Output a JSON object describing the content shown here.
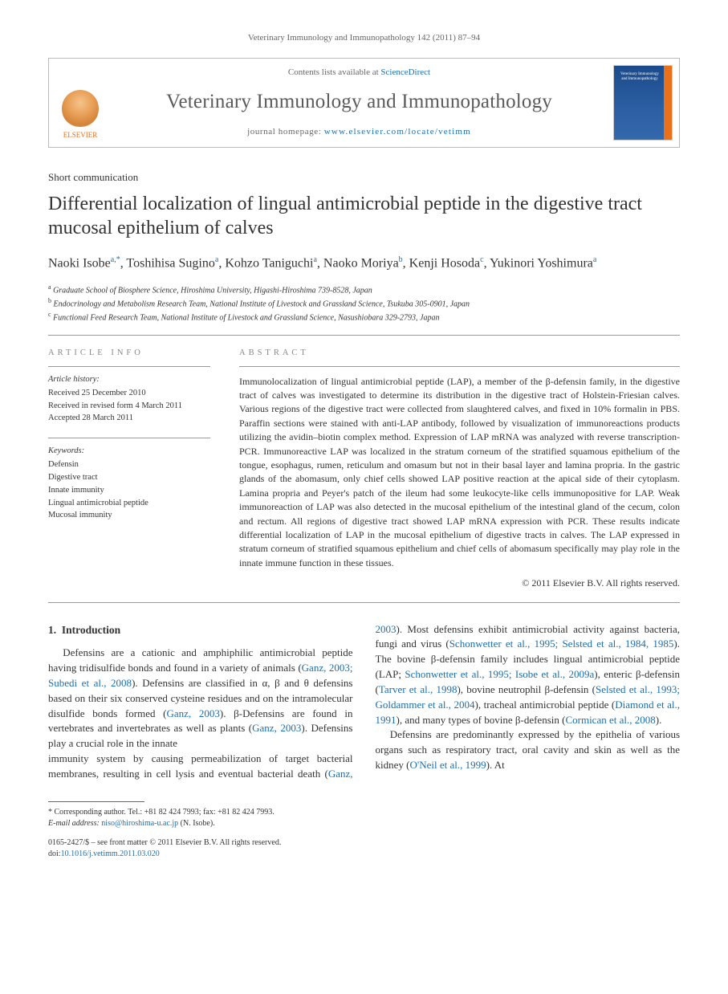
{
  "running_header": "Veterinary Immunology and Immunopathology 142 (2011) 87–94",
  "masthead": {
    "contents_prefix": "Contents lists available at ",
    "contents_link": "ScienceDirect",
    "journal_title": "Veterinary Immunology and Immunopathology",
    "homepage_prefix": "journal homepage: ",
    "homepage_url": "www.elsevier.com/locate/vetimm",
    "publisher_name": "ELSEVIER",
    "cover_text": "Veterinary Immunology and Immunopathology"
  },
  "article": {
    "type": "Short communication",
    "title": "Differential localization of lingual antimicrobial peptide in the digestive tract mucosal epithelium of calves",
    "authors_html": "Naoki Isobe<sup>a,*</sup>, Toshihisa Sugino<sup>a</sup>, Kohzo Taniguchi<sup>a</sup>, Naoko Moriya<sup>b</sup>, Kenji Hosoda<sup>c</sup>, Yukinori Yoshimura<sup>a</sup>",
    "affiliations": [
      {
        "sup": "a",
        "text": "Graduate School of Biosphere Science, Hiroshima University, Higashi-Hiroshima 739-8528, Japan"
      },
      {
        "sup": "b",
        "text": "Endocrinology and Metabolism Research Team, National Institute of Livestock and Grassland Science, Tsukuba 305-0901, Japan"
      },
      {
        "sup": "c",
        "text": "Functional Feed Research Team, National Institute of Livestock and Grassland Science, Nasushiobara 329-2793, Japan"
      }
    ]
  },
  "article_info": {
    "label": "ARTICLE INFO",
    "history_hdg": "Article history:",
    "history": [
      "Received 25 December 2010",
      "Received in revised form 4 March 2011",
      "Accepted 28 March 2011"
    ],
    "keywords_hdg": "Keywords:",
    "keywords": [
      "Defensin",
      "Digestive tract",
      "Innate immunity",
      "Lingual antimicrobial peptide",
      "Mucosal immunity"
    ]
  },
  "abstract": {
    "label": "ABSTRACT",
    "text": "Immunolocalization of lingual antimicrobial peptide (LAP), a member of the β-defensin family, in the digestive tract of calves was investigated to determine its distribution in the digestive tract of Holstein-Friesian calves. Various regions of the digestive tract were collected from slaughtered calves, and fixed in 10% formalin in PBS. Paraffin sections were stained with anti-LAP antibody, followed by visualization of immunoreactions products utilizing the avidin–biotin complex method. Expression of LAP mRNA was analyzed with reverse transcription-PCR. Immunoreactive LAP was localized in the stratum corneum of the stratified squamous epithelium of the tongue, esophagus, rumen, reticulum and omasum but not in their basal layer and lamina propria. In the gastric glands of the abomasum, only chief cells showed LAP positive reaction at the apical side of their cytoplasm. Lamina propria and Peyer's patch of the ileum had some leukocyte-like cells immunopositive for LAP. Weak immunoreaction of LAP was also detected in the mucosal epithelium of the intestinal gland of the cecum, colon and rectum. All regions of digestive tract showed LAP mRNA expression with PCR. These results indicate differential localization of LAP in the mucosal epithelium of digestive tracts in calves. The LAP expressed in stratum corneum of stratified squamous epithelium and chief cells of abomasum specifically may play role in the innate immune function in these tissues.",
    "copyright": "© 2011 Elsevier B.V. All rights reserved."
  },
  "body": {
    "section_number": "1.",
    "section_title": "Introduction",
    "para1_html": "Defensins are a cationic and amphiphilic antimicrobial peptide having tridisulfide bonds and found in a variety of animals (<a href='#'>Ganz, 2003; Subedi et al., 2008</a>). Defensins are classified in α, β and θ defensins based on their six conserved cysteine residues and on the intramolecular disulfide bonds formed (<a href='#'>Ganz, 2003</a>). β-Defensins are found in vertebrates and invertebrates as well as plants (<a href='#'>Ganz, 2003</a>). Defensins play a crucial role in the innate",
    "para1b_html": "immunity system by causing permeabilization of target bacterial membranes, resulting in cell lysis and eventual bacterial death (<a href='#'>Ganz, 2003</a>). Most defensins exhibit antimicrobial activity against bacteria, fungi and virus (<a href='#'>Schonwetter et al., 1995; Selsted et al., 1984, 1985</a>). The bovine β-defensin family includes lingual antimicrobial peptide (LAP; <a href='#'>Schonwetter et al., 1995; Isobe et al., 2009a</a>), enteric β-defensin (<a href='#'>Tarver et al., 1998</a>), bovine neutrophil β-defensin (<a href='#'>Selsted et al., 1993; Goldammer et al., 2004</a>), tracheal antimicrobial peptide (<a href='#'>Diamond et al., 1991</a>), and many types of bovine β-defensin (<a href='#'>Cormican et al., 2008</a>).",
    "para2_html": "Defensins are predominantly expressed by the epithelia of various organs such as respiratory tract, oral cavity and skin as well as the kidney (<a href='#'>O'Neil et al., 1999</a>). At"
  },
  "footnote": {
    "corr_label": "* Corresponding author. Tel.: +81 82 424 7993; fax: +81 82 424 7993.",
    "email_label": "E-mail address: ",
    "email": "niso@hiroshima-u.ac.jp",
    "email_suffix": " (N. Isobe)."
  },
  "footer": {
    "issn_line": "0165-2427/$ – see front matter © 2011 Elsevier B.V. All rights reserved.",
    "doi_prefix": "doi:",
    "doi": "10.1016/j.vetimm.2011.03.020"
  }
}
